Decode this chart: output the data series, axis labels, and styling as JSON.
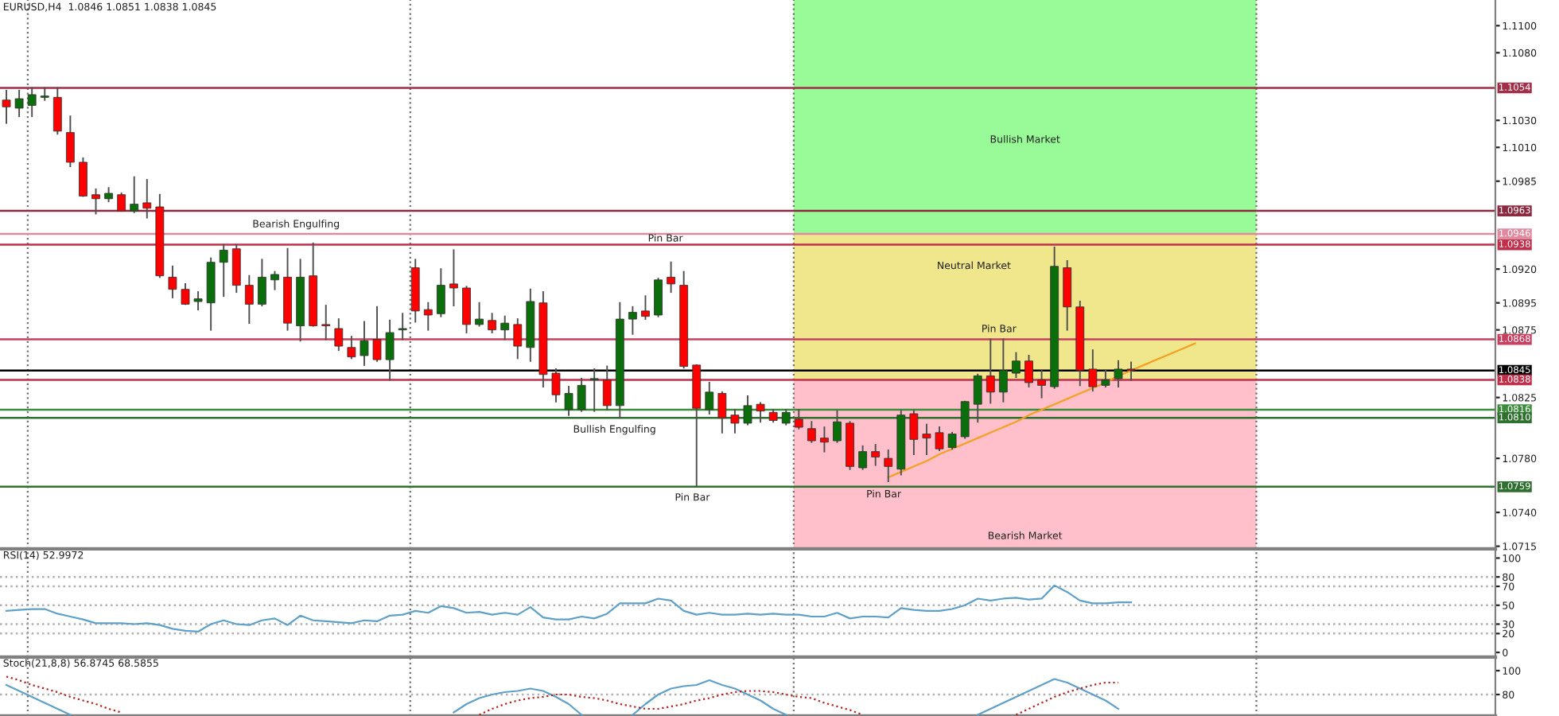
{
  "chart_data": [
    {
      "type": "candlestick",
      "title": "EURUSD,H4  1.0846 1.0851 1.0838 1.0845",
      "categories": [
        null,
        null,
        null,
        null,
        null,
        null,
        null,
        null,
        null,
        null,
        null,
        null,
        null,
        null,
        null,
        null,
        null,
        null,
        null,
        null,
        null,
        null,
        null,
        null,
        null,
        null,
        null,
        null,
        null,
        null,
        null,
        null,
        null,
        null,
        null,
        null,
        null,
        null,
        null,
        null,
        null,
        null,
        null,
        null,
        null,
        null,
        null,
        null,
        null,
        null,
        null,
        null,
        null,
        null,
        null,
        null,
        null,
        null,
        null,
        null,
        null,
        null,
        null,
        null,
        null,
        null,
        null,
        null,
        null,
        null,
        null,
        null,
        null,
        null,
        null,
        null,
        null,
        null,
        null,
        null,
        null,
        null,
        null,
        null,
        null,
        null,
        null,
        null,
        null,
        null,
        null,
        null,
        null,
        null,
        null,
        null,
        null,
        null,
        null,
        null,
        null,
        null,
        null,
        null,
        null,
        null,
        null,
        null,
        null,
        null,
        null,
        null,
        null,
        null,
        null,
        null,
        null
      ],
      "ohlc": [
        [
          1.1045,
          1.1052,
          1.1028,
          1.104
        ],
        [
          1.1039,
          1.1052,
          1.1033,
          1.1046
        ],
        [
          1.1041,
          1.1054,
          1.1033,
          1.1049
        ],
        [
          1.1047,
          1.1054,
          1.1045,
          1.1048
        ],
        [
          1.1047,
          1.1054,
          1.102,
          1.1022
        ],
        [
          1.1021,
          1.1033,
          1.0996,
          1.0999
        ],
        [
          1.0999,
          1.1002,
          1.0974,
          1.0974
        ],
        [
          1.0975,
          1.0979,
          1.0961,
          1.0972
        ],
        [
          1.0972,
          1.098,
          1.097,
          1.0976
        ],
        [
          1.0975,
          1.0976,
          1.0963,
          1.0963
        ],
        [
          1.0963,
          1.0988,
          1.0962,
          1.0968
        ],
        [
          1.0969,
          1.0986,
          1.0958,
          1.0965
        ],
        [
          1.0966,
          1.0975,
          1.0914,
          1.0915
        ],
        [
          1.0914,
          1.0922,
          1.0899,
          1.0905
        ],
        [
          1.0905,
          1.0909,
          1.0894,
          1.0894
        ],
        [
          1.0896,
          1.0903,
          1.089,
          1.0898
        ],
        [
          1.0895,
          1.0928,
          1.0875,
          1.0925
        ],
        [
          1.0925,
          1.0938,
          1.09,
          1.0934
        ],
        [
          1.0935,
          1.0938,
          1.0903,
          1.0908
        ],
        [
          1.0908,
          1.0915,
          1.088,
          1.0894
        ],
        [
          1.0894,
          1.0927,
          1.0893,
          1.0914
        ],
        [
          1.0912,
          1.0918,
          1.0905,
          1.0916
        ],
        [
          1.0914,
          1.0935,
          1.0875,
          1.088
        ],
        [
          1.0878,
          1.0927,
          1.0867,
          1.0914
        ],
        [
          1.0915,
          1.0939,
          1.0878,
          1.0878
        ],
        [
          1.0879,
          1.0893,
          1.0868,
          1.0878
        ],
        [
          1.0876,
          1.0883,
          1.086,
          1.0863
        ],
        [
          1.0862,
          1.087,
          1.0854,
          1.0855
        ],
        [
          1.0856,
          1.0881,
          1.0849,
          1.0867
        ],
        [
          1.0868,
          1.0892,
          1.0852,
          1.0853
        ],
        [
          1.0853,
          1.0882,
          1.0838,
          1.0873
        ],
        [
          1.0875,
          1.0887,
          1.0868,
          1.0876
        ],
        [
          1.0921,
          1.0927,
          1.0881,
          1.0889
        ],
        [
          1.089,
          1.0895,
          1.0875,
          1.0886
        ],
        [
          1.0887,
          1.092,
          1.0885,
          1.0908
        ],
        [
          1.0909,
          1.0934,
          1.0893,
          1.0906
        ],
        [
          1.0906,
          1.0907,
          1.0873,
          1.0879
        ],
        [
          1.0879,
          1.0895,
          1.0878,
          1.0883
        ],
        [
          1.0882,
          1.0887,
          1.0873,
          1.0875
        ],
        [
          1.0875,
          1.0885,
          1.0868,
          1.088
        ],
        [
          1.0879,
          1.0883,
          1.0854,
          1.0863
        ],
        [
          1.0862,
          1.0905,
          1.0852,
          1.0896
        ],
        [
          1.0895,
          1.0903,
          1.0833,
          1.0842
        ],
        [
          1.0843,
          1.0846,
          1.0822,
          1.0827
        ],
        [
          1.0816,
          1.0833,
          1.0812,
          1.0828
        ],
        [
          1.0816,
          1.0839,
          1.0815,
          1.0834
        ],
        [
          1.0838,
          1.0846,
          1.0815,
          1.0839
        ],
        [
          1.0838,
          1.0848,
          1.0816,
          1.0819
        ],
        [
          1.0819,
          1.0895,
          1.081,
          1.0883
        ],
        [
          1.0883,
          1.0892,
          1.0872,
          1.0888
        ],
        [
          1.0889,
          1.09,
          1.0883,
          1.0885
        ],
        [
          1.0886,
          1.0913,
          1.0885,
          1.0912
        ],
        [
          1.0914,
          1.0925,
          1.0903,
          1.0909
        ],
        [
          1.0908,
          1.0918,
          1.0847,
          1.0848
        ],
        [
          1.0849,
          1.0849,
          1.076,
          1.0817
        ],
        [
          1.0816,
          1.0836,
          1.0813,
          1.0829
        ],
        [
          1.0828,
          1.0829,
          1.0799,
          1.081
        ],
        [
          1.0812,
          1.0816,
          1.0799,
          1.0806
        ],
        [
          1.0806,
          1.0826,
          1.0805,
          1.0819
        ],
        [
          1.082,
          1.0821,
          1.0807,
          1.0815
        ],
        [
          1.0814,
          1.0816,
          1.0807,
          1.0808
        ],
        [
          1.0806,
          1.0816,
          1.0805,
          1.0814
        ],
        [
          1.0809,
          1.0816,
          1.0802,
          1.0803
        ],
        [
          1.0802,
          1.0807,
          1.0792,
          1.0793
        ],
        [
          1.0795,
          1.0803,
          1.0785,
          1.0792
        ],
        [
          1.0793,
          1.0815,
          1.0792,
          1.0807
        ],
        [
          1.0806,
          1.0807,
          1.0772,
          1.0774
        ],
        [
          1.0773,
          1.0789,
          1.0772,
          1.0785
        ],
        [
          1.0785,
          1.079,
          1.0775,
          1.0781
        ],
        [
          1.078,
          1.0786,
          1.0763,
          1.0774
        ],
        [
          1.0772,
          1.0815,
          1.0768,
          1.0812
        ],
        [
          1.0813,
          1.0815,
          1.0783,
          1.0794
        ],
        [
          1.0798,
          1.0805,
          1.0783,
          1.0795
        ],
        [
          1.0799,
          1.0803,
          1.0786,
          1.0787
        ],
        [
          1.0788,
          1.0799,
          1.0787,
          1.0798
        ],
        [
          1.0796,
          1.0822,
          1.0795,
          1.0822
        ],
        [
          1.082,
          1.0842,
          1.0807,
          1.0841
        ],
        [
          1.0841,
          1.0868,
          1.0821,
          1.0829
        ],
        [
          1.0829,
          1.0868,
          1.0822,
          1.0845
        ],
        [
          1.0843,
          1.0858,
          1.084,
          1.0852
        ],
        [
          1.0852,
          1.0856,
          1.0833,
          1.0836
        ],
        [
          1.0838,
          1.0845,
          1.0825,
          1.0834
        ],
        [
          1.0833,
          1.0936,
          1.0832,
          1.0922
        ],
        [
          1.0921,
          1.0926,
          1.0875,
          1.0892
        ],
        [
          1.0892,
          1.0896,
          1.0834,
          1.0845
        ],
        [
          1.0846,
          1.086,
          1.083,
          1.0833
        ],
        [
          1.0834,
          1.0845,
          1.0833,
          1.0838
        ],
        [
          1.0839,
          1.0852,
          1.0833,
          1.0846
        ],
        [
          1.0846,
          1.0851,
          1.0838,
          1.0845
        ],
        null,
        null,
        null,
        null,
        null,
        null,
        null,
        null,
        null,
        null,
        null,
        null,
        null,
        null,
        null,
        null,
        null,
        null,
        null,
        null,
        null,
        null,
        null,
        null,
        null,
        null,
        null,
        null
      ],
      "colors": [
        "#ff0000",
        "#0a6e0a",
        "#0a6e0a",
        "#0a6e0a",
        "#ff0000",
        "#ff0000",
        "#ff0000",
        "#ff0000",
        "#0a6e0a",
        "#ff0000",
        "#0a6e0a",
        "#ff0000",
        "#ff0000",
        "#ff0000",
        "#ff0000",
        "#0a6e0a",
        "#0a6e0a",
        "#0a6e0a",
        "#ff0000",
        "#ff0000",
        "#0a6e0a",
        "#0a6e0a",
        "#ff0000",
        "#0a6e0a",
        "#ff0000",
        "#ff0000",
        "#ff0000",
        "#ff0000",
        "#0a6e0a",
        "#ff0000",
        "#0a6e0a",
        "#0a6e0a",
        "#ff0000",
        "#ff0000",
        "#0a6e0a",
        "#ff0000",
        "#ff0000",
        "#0a6e0a",
        "#ff0000",
        "#0a6e0a",
        "#ff0000",
        "#0a6e0a",
        "#ff0000",
        "#ff0000",
        "#0a6e0a",
        "#0a6e0a",
        "#0a6e0a",
        "#ff0000",
        "#0a6e0a",
        "#0a6e0a",
        "#ff0000",
        "#0a6e0a",
        "#ff0000",
        "#ff0000",
        "#ff0000",
        "#0a6e0a",
        "#ff0000",
        "#ff0000",
        "#0a6e0a",
        "#ff0000",
        "#ff0000",
        "#0a6e0a",
        "#ff0000",
        "#ff0000",
        "#ff0000",
        "#0a6e0a",
        "#ff0000",
        "#0a6e0a",
        "#ff0000",
        "#ff0000",
        "#0a6e0a",
        "#ff0000",
        "#ff0000",
        "#ff0000",
        "#0a6e0a",
        "#0a6e0a",
        "#0a6e0a",
        "#ff0000",
        "#0a6e0a",
        "#0a6e0a",
        "#ff0000",
        "#ff0000",
        "#0a6e0a",
        "#ff0000",
        "#ff0000",
        "#ff0000",
        "#0a6e0a",
        "#0a6e0a",
        "#ff0000",
        null,
        null,
        null,
        null,
        null,
        null,
        null,
        null,
        null,
        null,
        null,
        null,
        null,
        null,
        null,
        null,
        null,
        null,
        null,
        null,
        null,
        null,
        null,
        null,
        null,
        null,
        null,
        null
      ],
      "series": [
        {
          "type": "line",
          "values": [
            null,
            null,
            null,
            null,
            null,
            null,
            null,
            null,
            null,
            null,
            null,
            null,
            null,
            null,
            null,
            null,
            null,
            null,
            null,
            null,
            null,
            null,
            null,
            null,
            null,
            null,
            null,
            null,
            null,
            null,
            null,
            null,
            null,
            null,
            null,
            null,
            null,
            null,
            null,
            null,
            null,
            null,
            null,
            null,
            null,
            null,
            null,
            null,
            null,
            null,
            null,
            null,
            null,
            null,
            null,
            null,
            null,
            null,
            null,
            null,
            null,
            null,
            null,
            null,
            null,
            null,
            null,
            null,
            null,
            1.0766,
            1.077,
            1.0774,
            1.0778,
            1.0783,
            1.0787,
            1.0791,
            1.0795,
            1.0799,
            1.0803,
            1.0807,
            1.0812,
            1.0816,
            1.082,
            1.0824,
            1.0828,
            1.0832,
            1.0836,
            1.0841,
            1.0845,
            1.0849,
            1.0853,
            1.0857,
            1.0861,
            1.0865,
            null,
            null,
            null,
            null,
            null,
            null,
            null,
            null,
            null,
            null,
            null,
            null,
            null,
            null,
            null,
            null,
            null,
            null,
            null,
            null,
            null,
            null,
            null
          ],
          "color": "#f5a020"
        }
      ],
      "ylim": [
        1.0713,
        1.1119
      ],
      "yticks": [
        {
          "value": 1.11,
          "label": "1.1100"
        },
        {
          "value": 1.108,
          "label": "1.1080"
        },
        {
          "value": 1.103,
          "label": "1.1030"
        },
        {
          "value": 1.101,
          "label": "1.1010"
        },
        {
          "value": 1.0985,
          "label": "1.0985"
        },
        {
          "value": 1.092,
          "label": "1.0920"
        },
        {
          "value": 1.0895,
          "label": "1.0895"
        },
        {
          "value": 1.0875,
          "label": "1.0875"
        },
        {
          "value": 1.0825,
          "label": "1.0825"
        },
        {
          "value": 1.078,
          "label": "1.0780"
        },
        {
          "value": 1.074,
          "label": "1.0740"
        },
        {
          "value": 1.0715,
          "label": "1.0715"
        }
      ],
      "bands": [
        {
          "axis": "y",
          "from": 1.0946,
          "to": 1.1119,
          "label": "Bullish Market",
          "color": "#98fb98"
        },
        {
          "axis": "y",
          "from": 1.0838,
          "to": 1.0946,
          "label": "Neutral Market",
          "color": "#f0e68c"
        },
        {
          "axis": "y",
          "from": 1.0713,
          "to": 1.0838,
          "label": "Bearish Market",
          "color": "#ffc0cb"
        }
      ],
      "ref_lines": [
        {
          "axis": "y",
          "value": 1.1054,
          "label": "1.1054",
          "color": "#a0304a"
        },
        {
          "axis": "y",
          "value": 1.0963,
          "label": "1.0963",
          "color": "#8b2a40"
        },
        {
          "axis": "y",
          "value": 1.0946,
          "label": "1.0946",
          "color": "#e08aa0"
        },
        {
          "axis": "y",
          "value": 1.0938,
          "label": "1.0938",
          "color": "#c0304a"
        },
        {
          "axis": "y",
          "value": 1.0868,
          "label": "1.0868",
          "color": "#c84060"
        },
        {
          "axis": "y",
          "value": 1.0845,
          "label": "1.0845",
          "color": "#000000"
        },
        {
          "axis": "y",
          "value": 1.0838,
          "label": "1.0838",
          "color": "#c0304a"
        },
        {
          "axis": "y",
          "value": 1.0816,
          "label": "1.0816",
          "color": "#3c8c3c"
        },
        {
          "axis": "y",
          "value": 1.081,
          "label": "1.0810",
          "color": "#2f6f2f"
        },
        {
          "axis": "y",
          "value": 1.0759,
          "label": "1.0759",
          "color": "#2f6f2f"
        }
      ],
      "annotations": [
        "Bearish Engulfing",
        "Pin Bar",
        "Bullish Engulfing",
        "Pin Bar",
        "Pin Bar",
        "Pin Bar"
      ],
      "grid": "x",
      "tick_labels": "y"
    },
    {
      "type": "line",
      "title": "RSI(14) 52.9972",
      "categories": [
        null,
        null,
        null,
        null,
        null,
        null,
        null,
        null,
        null,
        null,
        null,
        null,
        null,
        null,
        null,
        null,
        null,
        null,
        null,
        null,
        null,
        null,
        null,
        null,
        null,
        null,
        null,
        null,
        null,
        null,
        null,
        null,
        null,
        null,
        null,
        null,
        null,
        null,
        null,
        null,
        null,
        null,
        null,
        null,
        null,
        null,
        null,
        null,
        null,
        null,
        null,
        null,
        null,
        null,
        null,
        null,
        null,
        null,
        null,
        null,
        null,
        null,
        null,
        null,
        null,
        null,
        null,
        null,
        null,
        null,
        null,
        null,
        null,
        null,
        null,
        null,
        null,
        null,
        null,
        null,
        null,
        null,
        null,
        null,
        null,
        null,
        null,
        null,
        null,
        null,
        null,
        null,
        null,
        null,
        null,
        null,
        null,
        null,
        null,
        null,
        null,
        null,
        null,
        null,
        null,
        null,
        null,
        null,
        null,
        null,
        null,
        null,
        null,
        null,
        null,
        null,
        null
      ],
      "series": [
        {
          "color": "#5fa0c8",
          "values": [
            44,
            45,
            46,
            46,
            41,
            38,
            35,
            31,
            31,
            31,
            30,
            31,
            29,
            25,
            23,
            22,
            30,
            34,
            30,
            29,
            34,
            36,
            29,
            39,
            34,
            33,
            32,
            31,
            34,
            33,
            39,
            40,
            44,
            42,
            49,
            47,
            42,
            43,
            40,
            42,
            40,
            48,
            37,
            35,
            35,
            38,
            36,
            41,
            52,
            52,
            52,
            57,
            55,
            44,
            40,
            42,
            40,
            40,
            41,
            40,
            41,
            40,
            40,
            38,
            38,
            42,
            36,
            38,
            38,
            37,
            47,
            45,
            44,
            44,
            46,
            50,
            57,
            55,
            57,
            58,
            56,
            57,
            71,
            64,
            55,
            52,
            52,
            53,
            53,
            null,
            null,
            null,
            null,
            null,
            null,
            null,
            null,
            null,
            null,
            null,
            null,
            null,
            null,
            null,
            null,
            null,
            null,
            null,
            null,
            null,
            null,
            null,
            null,
            null,
            null,
            null,
            null
          ]
        }
      ],
      "ylim": [
        -5,
        108
      ],
      "yticks": [
        100,
        80,
        70,
        50,
        30,
        20,
        0
      ],
      "ref_lines": [
        {
          "axis": "y",
          "value": 80,
          "color": "#b0b0b0",
          "line_style": "dotted"
        },
        {
          "axis": "y",
          "value": 70,
          "color": "#b0b0b0",
          "line_style": "dotted"
        },
        {
          "axis": "y",
          "value": 50,
          "color": "#b0b0b0",
          "line_style": "dotted"
        },
        {
          "axis": "y",
          "value": 30,
          "color": "#b0b0b0",
          "line_style": "dotted"
        },
        {
          "axis": "y",
          "value": 20,
          "color": "#b0b0b0",
          "line_style": "dotted"
        }
      ],
      "grid": "x",
      "tick_labels": "y"
    },
    {
      "type": "line",
      "title": "Stoch(21,8,8) 56.8745 68.5855",
      "categories": [
        null,
        null,
        null,
        null,
        null,
        null,
        null,
        null,
        null,
        null,
        null,
        null,
        null,
        null,
        null,
        null,
        null,
        null,
        null,
        null,
        null,
        null,
        null,
        null,
        null,
        null,
        null,
        null,
        null,
        null,
        null,
        null,
        null,
        null,
        null,
        null,
        null,
        null,
        null,
        null,
        null,
        null,
        null,
        null,
        null,
        null,
        null,
        null,
        null,
        null,
        null,
        null,
        null,
        null,
        null,
        null,
        null,
        null,
        null,
        null,
        null,
        null,
        null,
        null,
        null,
        null,
        null,
        null,
        null,
        null,
        null,
        null,
        null,
        null,
        null,
        null,
        null,
        null,
        null,
        null,
        null,
        null,
        null,
        null,
        null,
        null,
        null,
        null,
        null,
        null,
        null,
        null,
        null,
        null,
        null,
        null,
        null,
        null,
        null,
        null,
        null,
        null,
        null,
        null,
        null,
        null,
        null,
        null,
        null,
        null,
        null,
        null,
        null,
        null,
        null,
        null,
        null
      ],
      "series": [
        {
          "color": "#5fa0c8",
          "line_style": "solid",
          "values": [
            88,
            83,
            78,
            73,
            68,
            63,
            null,
            null,
            null,
            null,
            null,
            null,
            null,
            null,
            null,
            null,
            null,
            null,
            null,
            null,
            null,
            null,
            null,
            null,
            null,
            null,
            null,
            null,
            null,
            null,
            null,
            null,
            null,
            null,
            null,
            65,
            72,
            77,
            80,
            82,
            83,
            85,
            83,
            78,
            72,
            63,
            null,
            null,
            null,
            63,
            72,
            80,
            85,
            87,
            88,
            92,
            88,
            85,
            80,
            75,
            68,
            63,
            null,
            null,
            null,
            null,
            null,
            null,
            null,
            null,
            null,
            null,
            null,
            null,
            null,
            null,
            63,
            68,
            73,
            78,
            83,
            88,
            93,
            90,
            85,
            80,
            75,
            68,
            null,
            null,
            null,
            null,
            null,
            null,
            null,
            null,
            null,
            null,
            null,
            null,
            null,
            null,
            null,
            null,
            null,
            null,
            null,
            null,
            null,
            null,
            null,
            null,
            null,
            null,
            null,
            null,
            null
          ]
        },
        {
          "color": "#b22222",
          "line_style": "dotted",
          "values": [
            95,
            92,
            88,
            85,
            82,
            78,
            75,
            72,
            68,
            65,
            null,
            null,
            null,
            null,
            null,
            null,
            null,
            null,
            null,
            null,
            null,
            null,
            null,
            null,
            null,
            null,
            null,
            null,
            null,
            null,
            null,
            null,
            null,
            null,
            null,
            null,
            null,
            63,
            68,
            72,
            75,
            77,
            78,
            80,
            80,
            78,
            77,
            75,
            72,
            70,
            68,
            68,
            70,
            72,
            75,
            77,
            80,
            82,
            83,
            83,
            82,
            80,
            78,
            77,
            73,
            70,
            67,
            63,
            null,
            null,
            null,
            null,
            null,
            null,
            null,
            null,
            null,
            null,
            null,
            63,
            68,
            73,
            78,
            82,
            85,
            88,
            90,
            90,
            null,
            null,
            null,
            null,
            null,
            null,
            null,
            null,
            null,
            null,
            null,
            null,
            null,
            null,
            null,
            null,
            null,
            null,
            null,
            null,
            null,
            null,
            null,
            null,
            null,
            null,
            null,
            null,
            null
          ]
        }
      ],
      "ylim": [
        62,
        110
      ],
      "yticks": [
        100,
        80
      ],
      "ref_lines": [
        {
          "axis": "y",
          "value": 80,
          "color": "#b0b0b0",
          "line_style": "dotted"
        }
      ],
      "grid": "x",
      "tick_labels": "y"
    }
  ]
}
